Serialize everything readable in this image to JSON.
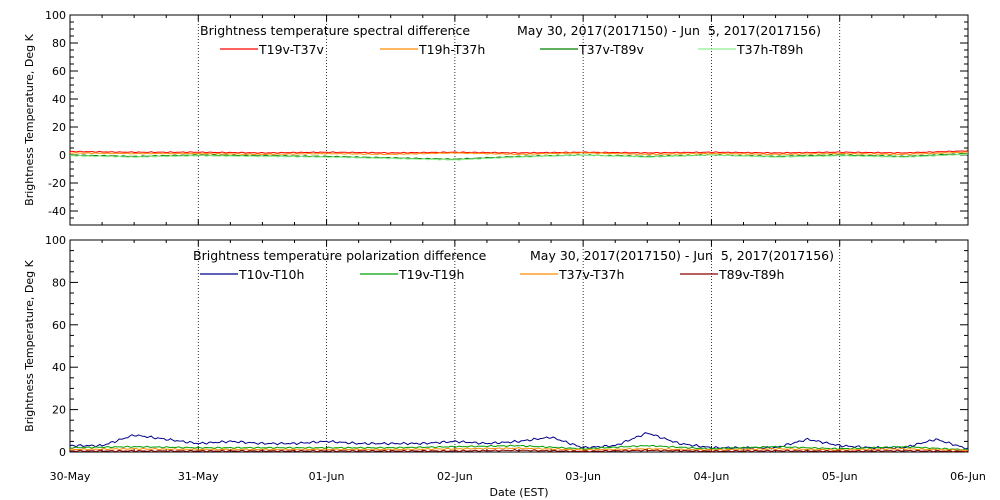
{
  "x_axis": {
    "title": "Date (EST)",
    "tick_labels": [
      "30-May",
      "31-May",
      "01-Jun",
      "02-Jun",
      "03-Jun",
      "04-Jun",
      "05-Jun",
      "06-Jun"
    ],
    "range_days": [
      0,
      7
    ]
  },
  "chart_data": [
    {
      "type": "line",
      "title": "Brightness temperature spectral difference",
      "date_range": "May 30, 2017(2017150) - Jun  5, 2017(2017156)",
      "ylabel": "Brightness Temperature, Deg K",
      "ylim": [
        -50,
        100
      ],
      "yticks": [
        -40,
        -20,
        0,
        20,
        40,
        60,
        80,
        100
      ],
      "grid": "vertical dotted at day boundaries",
      "legend_placement": "top, single row",
      "series": [
        {
          "name": "T19v-T37v",
          "color": "#ff0000",
          "x": [
            0,
            0.5,
            1,
            1.5,
            2,
            2.5,
            3,
            3.5,
            4,
            4.5,
            5,
            5.5,
            6,
            6.5,
            7
          ],
          "values": [
            2.5,
            2,
            2,
            1.5,
            2,
            1.5,
            2,
            1.5,
            2,
            1.5,
            2,
            1.5,
            2,
            1.5,
            3
          ]
        },
        {
          "name": "T19h-T37h",
          "color": "#ff8c00",
          "x": [
            0,
            0.5,
            1,
            1.5,
            2,
            2.5,
            3,
            3.5,
            4,
            4.5,
            5,
            5.5,
            6,
            6.5,
            7
          ],
          "values": [
            1.5,
            1,
            1,
            0.5,
            1,
            0.5,
            1.5,
            0.5,
            1.5,
            0.5,
            1,
            0.5,
            1,
            0.5,
            2
          ]
        },
        {
          "name": "T37v-T89v",
          "color": "#008000",
          "x": [
            0,
            0.5,
            1,
            1.5,
            2,
            2.5,
            3,
            3.5,
            4,
            4.5,
            5,
            5.5,
            6,
            6.5,
            7
          ],
          "values": [
            0,
            -1,
            0,
            -0.5,
            -1,
            -2,
            -3,
            -1,
            0,
            -1,
            0,
            -1,
            0,
            -1,
            1
          ]
        },
        {
          "name": "T37h-T89h",
          "color": "#90ee90",
          "x": [
            0,
            0.5,
            1,
            1.5,
            2,
            2.5,
            3,
            3.5,
            4,
            4.5,
            5,
            5.5,
            6,
            6.5,
            7
          ],
          "values": [
            -0.5,
            -1.5,
            -0.5,
            -1,
            -1.5,
            -2.5,
            -3.5,
            -1.5,
            0,
            -1.5,
            0,
            -1.5,
            -0.5,
            -1.5,
            0.5
          ]
        }
      ]
    },
    {
      "type": "line",
      "title": "Brightness temperature polarization difference",
      "date_range": "May 30, 2017(2017150) - Jun  5, 2017(2017156)",
      "ylabel": "Brightness Temperature, Deg K",
      "ylim": [
        0,
        100
      ],
      "yticks": [
        0,
        20,
        40,
        60,
        80,
        100
      ],
      "grid": "vertical dotted at day boundaries",
      "legend_placement": "top, single row",
      "series": [
        {
          "name": "T10v-T10h",
          "color": "#00008b",
          "x": [
            0,
            0.25,
            0.5,
            0.75,
            1,
            1.25,
            1.5,
            1.75,
            2,
            2.25,
            2.5,
            2.75,
            3,
            3.25,
            3.5,
            3.75,
            4,
            4.25,
            4.5,
            4.75,
            5,
            5.25,
            5.5,
            5.75,
            6,
            6.25,
            6.5,
            6.75,
            7
          ],
          "values": [
            3,
            3,
            8,
            6,
            4,
            5,
            4,
            4,
            5,
            4,
            4,
            4,
            5,
            4,
            5,
            7,
            2,
            3,
            9,
            4,
            2,
            2,
            2,
            6,
            3,
            2,
            2,
            6,
            1.5
          ]
        },
        {
          "name": "T19v-T19h",
          "color": "#00a000",
          "x": [
            0,
            0.5,
            1,
            1.5,
            2,
            2.5,
            3,
            3.5,
            4,
            4.5,
            5,
            5.5,
            6,
            6.5,
            7
          ],
          "values": [
            2,
            2.5,
            2,
            2,
            2,
            2,
            2.5,
            3,
            1.5,
            3,
            1.5,
            2.5,
            1.5,
            2.5,
            1
          ]
        },
        {
          "name": "T37v-T37h",
          "color": "#ff8c00",
          "x": [
            0,
            0.5,
            1,
            1.5,
            2,
            2.5,
            3,
            3.5,
            4,
            4.5,
            5,
            5.5,
            6,
            6.5,
            7
          ],
          "values": [
            1.2,
            1.5,
            1.2,
            1.2,
            1.2,
            1.2,
            1.5,
            1.8,
            1,
            1.5,
            1,
            1.5,
            1,
            1.5,
            0.8
          ]
        },
        {
          "name": "T89v-T89h",
          "color": "#8b0000",
          "x": [
            0,
            0.5,
            1,
            1.5,
            2,
            2.5,
            3,
            3.5,
            4,
            4.5,
            5,
            5.5,
            6,
            6.5,
            7
          ],
          "values": [
            0.5,
            0.5,
            0.5,
            0.5,
            0.5,
            0.5,
            0.5,
            0.8,
            0.3,
            0.8,
            0.4,
            0.6,
            0.4,
            0.6,
            0.3
          ]
        }
      ]
    }
  ]
}
